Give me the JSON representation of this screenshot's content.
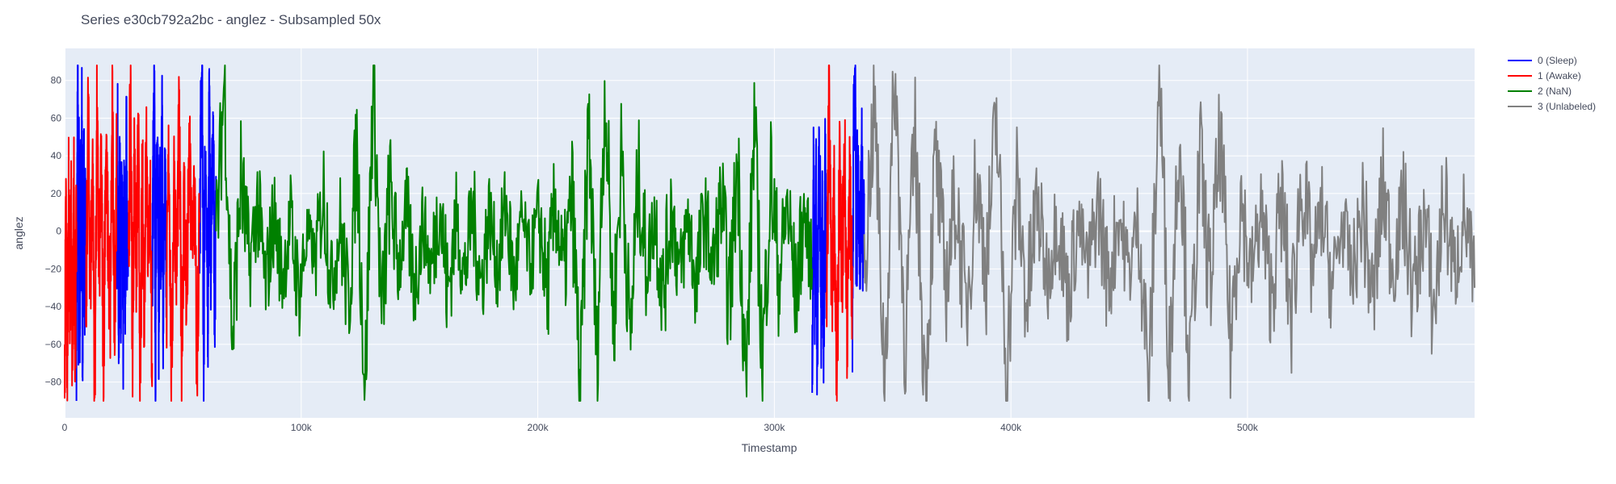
{
  "chart_data": {
    "type": "line",
    "title": "Series e30cb792a2bc - anglez - Subsampled 50x",
    "xlabel": "Timestamp",
    "ylabel": "anglez",
    "xlim": [
      0,
      596000
    ],
    "ylim": [
      -99,
      97
    ],
    "x_ticks": [
      0,
      100000,
      200000,
      300000,
      400000,
      500000
    ],
    "x_tick_labels": [
      "0",
      "100k",
      "200k",
      "300k",
      "400k",
      "500k"
    ],
    "y_ticks": [
      80,
      60,
      40,
      20,
      0,
      -20,
      -40,
      -60,
      -80
    ],
    "y_tick_labels": [
      "80",
      "60",
      "40",
      "20",
      "0",
      "−20",
      "−40",
      "−60",
      "−80"
    ],
    "grid": true,
    "legend_position": "top-right-outside",
    "plot_background": "#e5ecf6",
    "series": [
      {
        "name": "0 (Sleep)",
        "color": "#0000ff",
        "segments": [
          {
            "x_range": [
              5000,
              9000
            ],
            "values": [
              -60,
              20,
              77,
              -40,
              50,
              -70,
              30,
              -20,
              60,
              -75,
              10,
              40,
              -50,
              25,
              -10
            ]
          },
          {
            "x_range": [
              22000,
              27000
            ],
            "values": [
              -10,
              55,
              -70,
              45,
              -30,
              30,
              -60,
              20,
              -40,
              50,
              -20,
              10
            ]
          },
          {
            "x_range": [
              37000,
              43000
            ],
            "values": [
              -35,
              40,
              75,
              -70,
              20,
              60,
              -50,
              30,
              -20,
              70,
              -60,
              10,
              45,
              -30
            ]
          },
          {
            "x_range": [
              57000,
              64000
            ],
            "values": [
              -30,
              60,
              80,
              -80,
              40,
              20,
              -60,
              75,
              -20,
              30,
              50,
              -40,
              10
            ]
          },
          {
            "x_range": [
              316000,
              322000
            ],
            "values": [
              -70,
              40,
              -50,
              30,
              -75,
              50,
              20,
              -40,
              10,
              -65,
              35,
              -20
            ]
          },
          {
            "x_range": [
              333000,
              338000
            ],
            "values": [
              -40,
              60,
              83,
              -30,
              40,
              10,
              -20,
              50,
              -10,
              20
            ]
          }
        ]
      },
      {
        "name": "1 (Awake)",
        "color": "#ff0000",
        "segments": [
          {
            "x_range": [
              0,
              5000
            ],
            "values": [
              -85,
              15,
              -70,
              20,
              -40,
              10,
              -80,
              25,
              -60,
              5
            ]
          },
          {
            "x_range": [
              9000,
              22000
            ],
            "values": [
              -60,
              65,
              -30,
              40,
              -85,
              55,
              -20,
              30,
              -70,
              45,
              0,
              -50,
              60,
              -40,
              35
            ]
          },
          {
            "x_range": [
              27000,
              37000
            ],
            "values": [
              -30,
              84,
              -60,
              40,
              -20,
              50,
              -85,
              30,
              -40,
              60,
              -10,
              20,
              -70
            ]
          },
          {
            "x_range": [
              43000,
              57000
            ],
            "values": [
              -50,
              45,
              -80,
              30,
              -20,
              55,
              -60,
              20,
              -40,
              40,
              -10,
              25,
              -75,
              10
            ]
          },
          {
            "x_range": [
              322000,
              333000
            ],
            "values": [
              -60,
              70,
              -40,
              20,
              -85,
              30,
              -20,
              40,
              -55,
              25,
              -30
            ]
          }
        ]
      },
      {
        "name": "2 (NaN)",
        "color": "#008000",
        "segments": [
          {
            "x_range": [
              64000,
              316000
            ],
            "values": [
              -10,
              82,
              -60,
              30,
              -20,
              15,
              -30,
              10,
              -25,
              5,
              -35,
              0,
              -15,
              20,
              -28,
              3,
              -40,
              45,
              -85,
              86,
              -50,
              25,
              -20,
              10,
              -30,
              5,
              -22,
              18,
              -35,
              8,
              -25,
              12,
              -30,
              10,
              -20,
              15,
              -28,
              5,
              -18,
              10,
              -32,
              15,
              -25,
              20,
              -85,
              60,
              -70,
              80,
              -50,
              45,
              -60,
              30,
              -20,
              10,
              -35,
              15,
              -25,
              8,
              -30,
              12,
              -22,
              18,
              -40,
              40,
              -85,
              60,
              -70,
              30,
              -25,
              15,
              -35,
              10,
              -20
            ]
          }
        ]
      },
      {
        "name": "3 (Unlabeled)",
        "color": "#808080",
        "segments": [
          {
            "x_range": [
              338000,
              596000
            ],
            "values": [
              -20,
              70,
              -80,
              86,
              -60,
              50,
              -85,
              40,
              -30,
              20,
              -45,
              30,
              -20,
              60,
              -75,
              25,
              -40,
              15,
              -25,
              10,
              -35,
              5,
              -20,
              15,
              -30,
              10,
              -22,
              8,
              -85,
              86,
              -70,
              60,
              -80,
              40,
              -30,
              50,
              -60,
              20,
              -25,
              10,
              -35,
              15,
              -45,
              30,
              -20,
              10,
              -30,
              5,
              -25,
              12,
              -40,
              25,
              -20,
              15,
              -35,
              8,
              -45,
              20,
              -25,
              10,
              -30
            ]
          }
        ]
      }
    ]
  }
}
